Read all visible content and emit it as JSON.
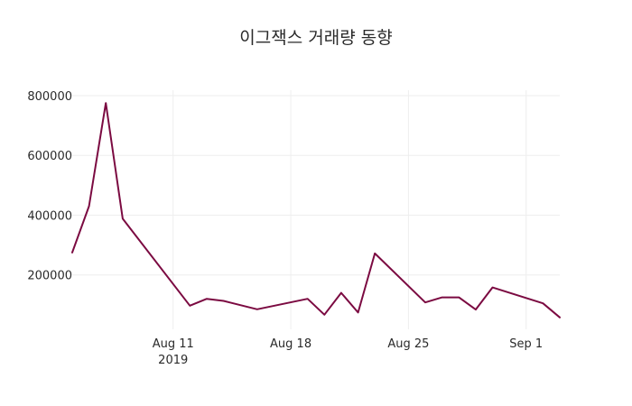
{
  "colors": {
    "background": "#ffffff",
    "series_line": "#7b0a41",
    "grid": "#eeeeee",
    "text": "#2a2a2a"
  },
  "chart_data": {
    "type": "line",
    "title": "이그잭스 거래량 동향",
    "xlabel": "",
    "ylabel": "",
    "grid": true,
    "legend": "none",
    "x": [
      "2019-08-05",
      "2019-08-06",
      "2019-08-07",
      "2019-08-08",
      "2019-08-12",
      "2019-08-13",
      "2019-08-14",
      "2019-08-16",
      "2019-08-19",
      "2019-08-20",
      "2019-08-21",
      "2019-08-22",
      "2019-08-23",
      "2019-08-26",
      "2019-08-27",
      "2019-08-28",
      "2019-08-29",
      "2019-08-30",
      "2019-09-02",
      "2019-09-03"
    ],
    "series": [
      {
        "values": [
          275000,
          430000,
          775000,
          388000,
          97000,
          120000,
          113000,
          85000,
          120000,
          67000,
          140000,
          74000,
          272000,
          108000,
          125000,
          125000,
          84000,
          158000,
          105000,
          58000
        ]
      }
    ],
    "xlim": [
      "2019-08-05",
      "2019-09-03"
    ],
    "ylim": [
      18000,
      818000
    ],
    "y_ticks": [
      200000,
      400000,
      600000,
      800000
    ],
    "y_tick_labels": [
      "200000",
      "400000",
      "600000",
      "800000"
    ],
    "x_ticks": [
      "2019-08-11",
      "2019-08-18",
      "2019-08-25",
      "2019-09-01"
    ],
    "x_tick_labels": [
      "Aug 11",
      "Aug 18",
      "Aug 25",
      "Sep 1"
    ],
    "x_tick_sublabels": [
      "2019",
      "",
      "",
      ""
    ]
  }
}
